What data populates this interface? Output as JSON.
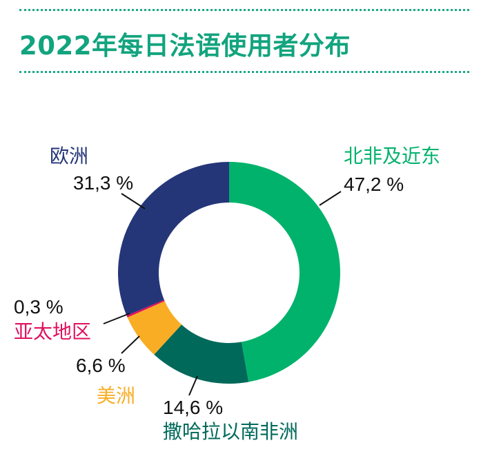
{
  "title": "2022年每日法语使用者分布",
  "colors": {
    "accent": "#12a47e",
    "leader": "#111111"
  },
  "chart_data": {
    "type": "donut",
    "title": "2022年每日法语使用者分布",
    "unit": "%",
    "series": [
      {
        "name": "北非及近东",
        "value": 47.2,
        "label": "47,2 %",
        "color": "#00b26b"
      },
      {
        "name": "撒哈拉以南非洲",
        "value": 14.6,
        "label": "14,6 %",
        "color": "#00695a"
      },
      {
        "name": "美洲",
        "value": 6.6,
        "label": "6,6  %",
        "color": "#f8ad25"
      },
      {
        "name": "亚太地区",
        "value": 0.3,
        "label": "0,3 %",
        "color": "#e0105f"
      },
      {
        "name": "欧洲",
        "value": 31.3,
        "label": "31,3 %",
        "color": "#253678"
      }
    ]
  }
}
